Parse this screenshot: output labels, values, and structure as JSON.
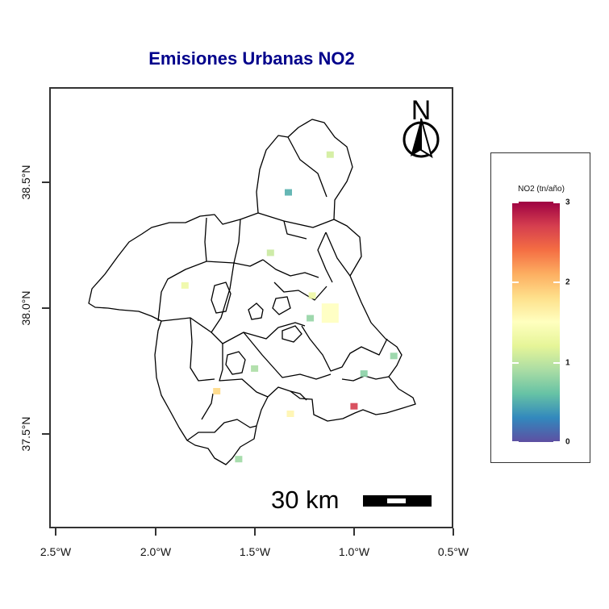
{
  "title": "Emisiones Urbanas NO2",
  "north_arrow": {
    "label": "N"
  },
  "scale_bar": {
    "label": "30 km"
  },
  "legend": {
    "title": "NO2 (tn/año)",
    "ticks": [
      {
        "label": "0",
        "value": 0
      },
      {
        "label": "1",
        "value": 1
      },
      {
        "label": "2",
        "value": 2
      },
      {
        "label": "3",
        "value": 3
      }
    ],
    "range": [
      0,
      3
    ],
    "colors": [
      "#5e4fa2",
      "#3288bd",
      "#66c2a5",
      "#abdda4",
      "#e6f598",
      "#ffffbf",
      "#fee08b",
      "#fdae61",
      "#f46d43",
      "#d53e4f",
      "#9e0142"
    ]
  },
  "axes": {
    "x_ticks": [
      {
        "label": "2.5°W",
        "value": -2.5
      },
      {
        "label": "2.0°W",
        "value": -2.0
      },
      {
        "label": "1.5°W",
        "value": -1.5
      },
      {
        "label": "1.0°W",
        "value": -1.0
      },
      {
        "label": "0.5°W",
        "value": -0.5
      }
    ],
    "y_ticks": [
      {
        "label": "37.5°N",
        "value": 37.5
      },
      {
        "label": "38.0°N",
        "value": 38.0
      },
      {
        "label": "38.5°N",
        "value": 38.5
      }
    ]
  },
  "chart_data": {
    "type": "heatmap",
    "variable": "NO2 (tn/año)",
    "cells": [
      {
        "lon": -1.12,
        "lat": 38.61,
        "value": 1.1
      },
      {
        "lon": -1.33,
        "lat": 38.46,
        "value": 0.5
      },
      {
        "lon": -1.42,
        "lat": 38.22,
        "value": 1.05
      },
      {
        "lon": -1.85,
        "lat": 38.09,
        "value": 1.3
      },
      {
        "lon": -1.21,
        "lat": 38.05,
        "value": 1.3
      },
      {
        "lon": -1.22,
        "lat": 37.96,
        "value": 0.8
      },
      {
        "lon": -1.12,
        "lat": 37.98,
        "value": 1.5
      },
      {
        "lon": -1.5,
        "lat": 37.76,
        "value": 0.9
      },
      {
        "lon": -1.69,
        "lat": 37.67,
        "value": 1.85
      },
      {
        "lon": -0.95,
        "lat": 37.74,
        "value": 0.75
      },
      {
        "lon": -0.8,
        "lat": 37.81,
        "value": 0.8
      },
      {
        "lon": -1.0,
        "lat": 37.61,
        "value": 2.7
      },
      {
        "lon": -1.32,
        "lat": 37.58,
        "value": 1.6
      },
      {
        "lon": -1.58,
        "lat": 37.4,
        "value": 0.85
      }
    ]
  }
}
